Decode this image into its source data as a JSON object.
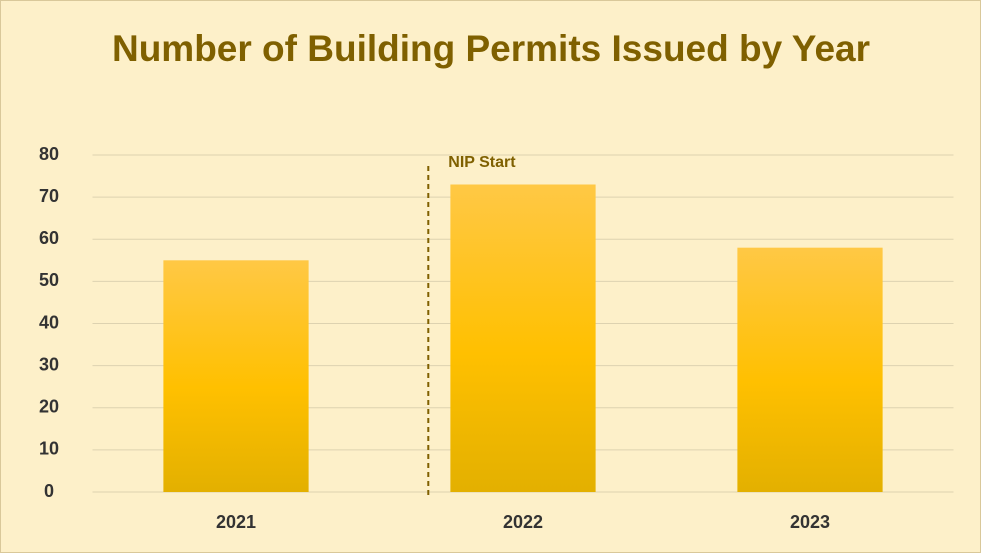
{
  "chart_data": {
    "type": "bar",
    "title": "Number of Building Permits Issued by Year",
    "categories": [
      "2021",
      "2022",
      "2023"
    ],
    "values": [
      55,
      73,
      58
    ],
    "color": "#ffc000",
    "ylim": [
      0,
      80
    ],
    "yticks": [
      0,
      10,
      20,
      30,
      40,
      50,
      60,
      70,
      80
    ],
    "grid": true,
    "annotation": "NIP Start"
  }
}
